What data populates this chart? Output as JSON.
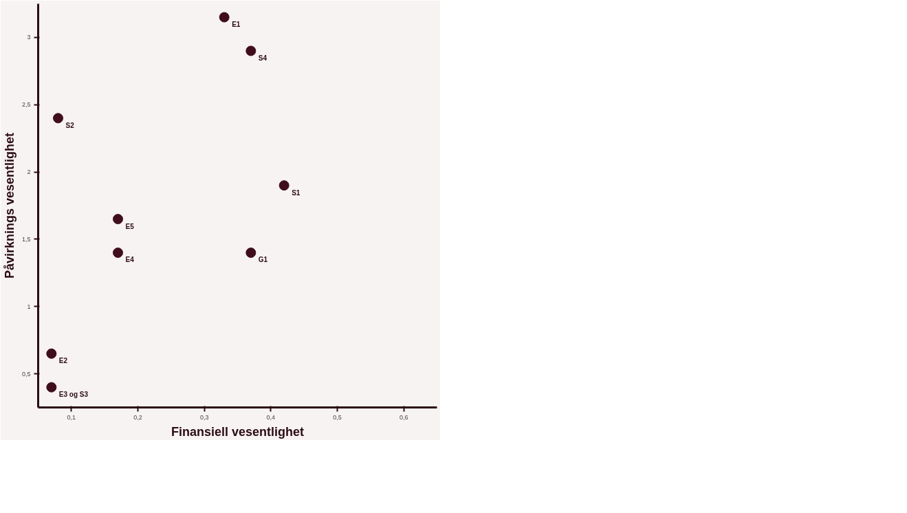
{
  "chart_data": {
    "type": "scatter",
    "xlabel": "Finansiell vesentlighet",
    "ylabel": "Påvirknings vesentlighet",
    "xlim": [
      0.05,
      0.65
    ],
    "ylim": [
      0.25,
      3.25
    ],
    "xticks": [
      {
        "value": 0.1,
        "label": "0,1"
      },
      {
        "value": 0.2,
        "label": "0,2"
      },
      {
        "value": 0.3,
        "label": "0,3"
      },
      {
        "value": 0.4,
        "label": "0,4"
      },
      {
        "value": 0.5,
        "label": "0,5"
      },
      {
        "value": 0.6,
        "label": "0,6"
      }
    ],
    "yticks": [
      {
        "value": 0.5,
        "label": "0,5"
      },
      1,
      {
        "value": 1.5,
        "label": "1,5"
      },
      2,
      {
        "value": 2.5,
        "label": "2,5"
      },
      3
    ],
    "series": [
      {
        "color": "#3f0d1e",
        "x": [
          0.33,
          0.37,
          0.08,
          0.42,
          0.17,
          0.17,
          0.37,
          0.07,
          0.07
        ],
        "values": [
          3.15,
          2.9,
          2.4,
          1.9,
          1.65,
          1.4,
          1.4,
          0.65,
          0.4
        ]
      }
    ],
    "annotations": [
      {
        "text": "E1",
        "x": 0.33,
        "y": 3.15
      },
      {
        "text": "S4",
        "x": 0.37,
        "y": 2.9
      },
      {
        "text": "S2",
        "x": 0.08,
        "y": 2.4
      },
      {
        "text": "S1",
        "x": 0.42,
        "y": 1.9
      },
      {
        "text": "E5",
        "x": 0.17,
        "y": 1.65
      },
      {
        "text": "E4",
        "x": 0.17,
        "y": 1.4
      },
      {
        "text": "G1",
        "x": 0.37,
        "y": 1.4
      },
      {
        "text": "E2",
        "x": 0.07,
        "y": 0.65
      },
      {
        "text": "E3 og S3",
        "x": 0.07,
        "y": 0.4
      }
    ],
    "marker": "circle"
  }
}
